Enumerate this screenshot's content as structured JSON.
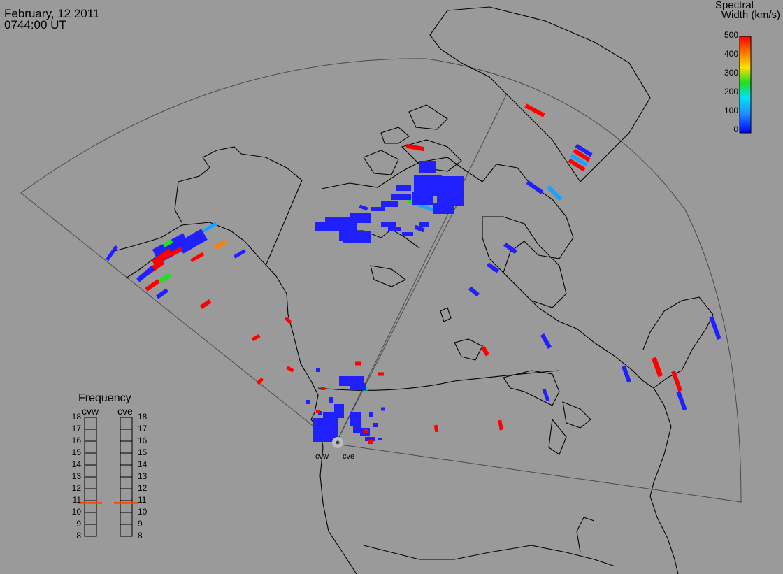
{
  "header": {
    "date": "February, 12 2011",
    "time": "0744:00 UT"
  },
  "color_scale": {
    "title_line1": "Spectral",
    "title_line2": "Width (km/s)",
    "ticks": [
      "500",
      "400",
      "300",
      "200",
      "100",
      "0"
    ],
    "colors": [
      "#ff0000",
      "#ff8000",
      "#ffe000",
      "#20e020",
      "#00e0ff",
      "#1e90ff",
      "#0000ff"
    ]
  },
  "frequency_panel": {
    "title": "Frequency",
    "radars": [
      "cvw",
      "cve"
    ],
    "ticks": [
      "18",
      "17",
      "16",
      "15",
      "14",
      "13",
      "12",
      "11",
      "10",
      "9",
      "8"
    ],
    "cvw_frequency_mhz": 10.8,
    "cve_frequency_mhz": 10.8,
    "marker_color": "#ff4000"
  },
  "sites": {
    "west_label": "cvw",
    "east_label": "cve"
  },
  "colors": {
    "background": "#9a9a9a",
    "coast": "#000000",
    "fov": "#505050",
    "scatter_low": "#2020ff",
    "scatter_high": "#ff0000"
  }
}
